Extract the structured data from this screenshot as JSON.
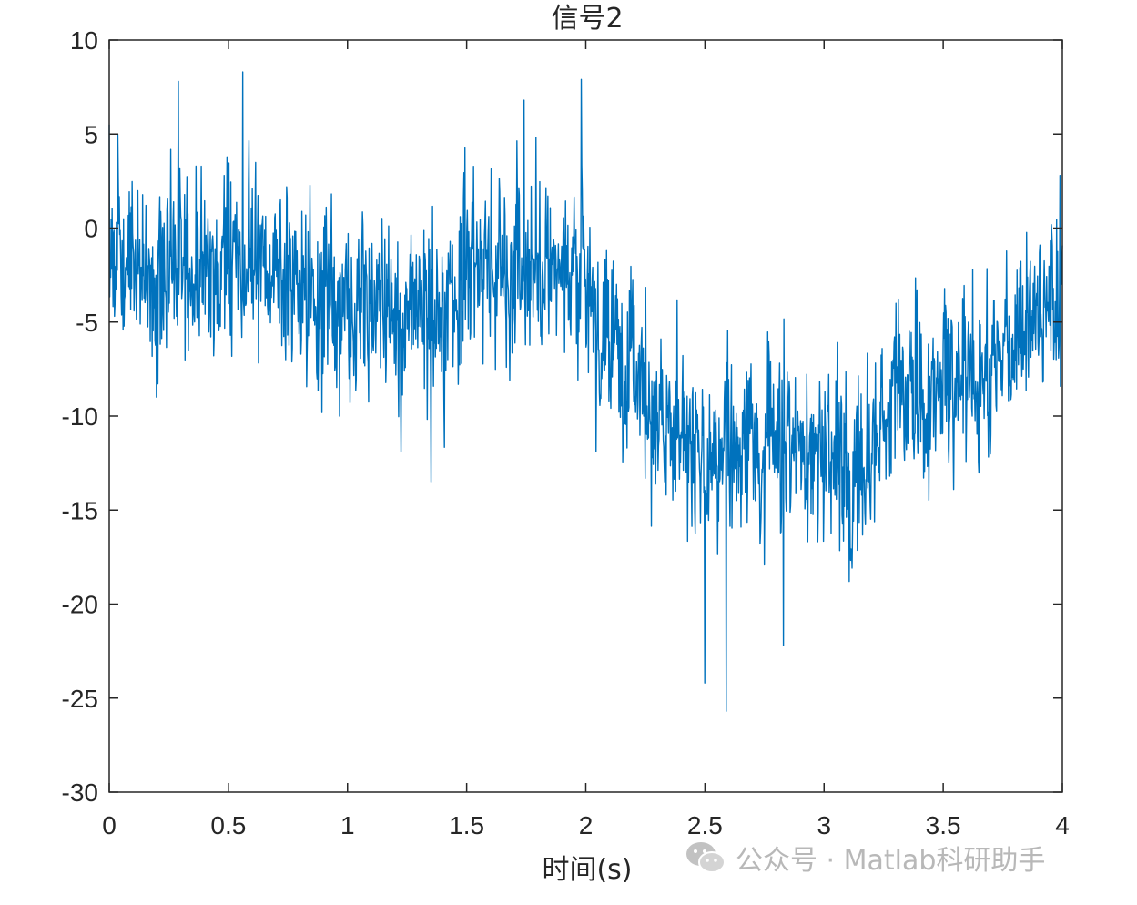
{
  "chart_data": {
    "type": "line",
    "title": "信号2",
    "xlabel": "时间(s)",
    "ylabel": "",
    "xlim": [
      0,
      4
    ],
    "ylim": [
      -30,
      10
    ],
    "xticks": [
      0,
      0.5,
      1,
      1.5,
      2,
      2.5,
      3,
      3.5,
      4
    ],
    "xtick_labels": [
      "0",
      "0.5",
      "1",
      "1.5",
      "2",
      "2.5",
      "3",
      "3.5",
      "4"
    ],
    "yticks": [
      10,
      5,
      0,
      -5,
      -10,
      -15,
      -20,
      -25,
      -30
    ],
    "ytick_labels": [
      "10",
      "5",
      "0",
      "-5",
      "-10",
      "-15",
      "-20",
      "-25",
      "-30"
    ],
    "grid": false,
    "series": [
      {
        "color": "#0072BD",
        "trend": {
          "x": [
            0,
            0.25,
            0.5,
            0.75,
            1.0,
            1.25,
            1.5,
            1.75,
            1.95,
            2.1,
            2.3,
            2.5,
            2.75,
            3.0,
            3.2,
            3.3,
            3.5,
            3.75,
            4.0
          ],
          "y": [
            -2,
            -2.5,
            -2,
            -3,
            -4,
            -5,
            -3,
            -2.5,
            -2,
            -6,
            -10,
            -12,
            -11.5,
            -12,
            -13,
            -9,
            -8.5,
            -7,
            -3
          ]
        },
        "noise_amplitude": 3.5,
        "num_points": 2000,
        "notable_points": [
          {
            "x": 0.0,
            "y": 5.5
          },
          {
            "x": 0.29,
            "y": 7.8
          },
          {
            "x": 0.56,
            "y": 8.3
          },
          {
            "x": 1.35,
            "y": -13.5
          },
          {
            "x": 1.74,
            "y": 6.8
          },
          {
            "x": 1.98,
            "y": 7.9
          },
          {
            "x": 2.5,
            "y": -24.2
          },
          {
            "x": 2.59,
            "y": -25.7
          },
          {
            "x": 2.83,
            "y": -22.2
          },
          {
            "x": 3.99,
            "y": 2.8
          }
        ]
      }
    ]
  },
  "watermark": {
    "text": "公众号 · Matlab科研助手",
    "icon": "wechat-icon"
  }
}
